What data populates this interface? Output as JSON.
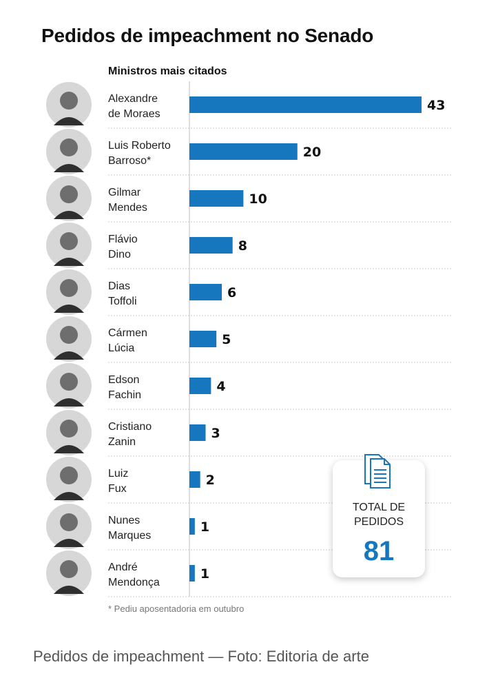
{
  "title": "Pedidos de impeachment no Senado",
  "subtitle": "Ministros mais citados",
  "footnote": "* Pediu aposentadoria em outubro",
  "total": {
    "label_line1": "TOTAL DE",
    "label_line2": "PEDIDOS",
    "value": "81",
    "icon": "documents-icon"
  },
  "caption": "Pedidos de impeachment — Foto: Editoria de arte",
  "colors": {
    "bar": "#1677bf",
    "grid": "#c8c8c8",
    "avatar_bg": "#d7d7d7",
    "avatar_fg": "#6e6e6e"
  },
  "chart_data": {
    "type": "bar",
    "orientation": "horizontal",
    "title": "Pedidos de impeachment no Senado",
    "subtitle": "Ministros mais citados",
    "categories": [
      [
        "Alexandre",
        "de Moraes"
      ],
      [
        "Luis Roberto",
        "Barroso*"
      ],
      [
        "Gilmar",
        "Mendes"
      ],
      [
        "Flávio",
        "Dino"
      ],
      [
        "Dias",
        "Toffoli"
      ],
      [
        "Cármen",
        "Lúcia"
      ],
      [
        "Edson",
        "Fachin"
      ],
      [
        "Cristiano",
        "Zanin"
      ],
      [
        "Luiz",
        "Fux"
      ],
      [
        "Nunes",
        "Marques"
      ],
      [
        "André",
        "Mendonça"
      ]
    ],
    "values": [
      43,
      20,
      10,
      8,
      6,
      5,
      4,
      3,
      2,
      1,
      1
    ],
    "xlim": [
      0,
      43
    ],
    "grid": true,
    "legend": "none"
  }
}
